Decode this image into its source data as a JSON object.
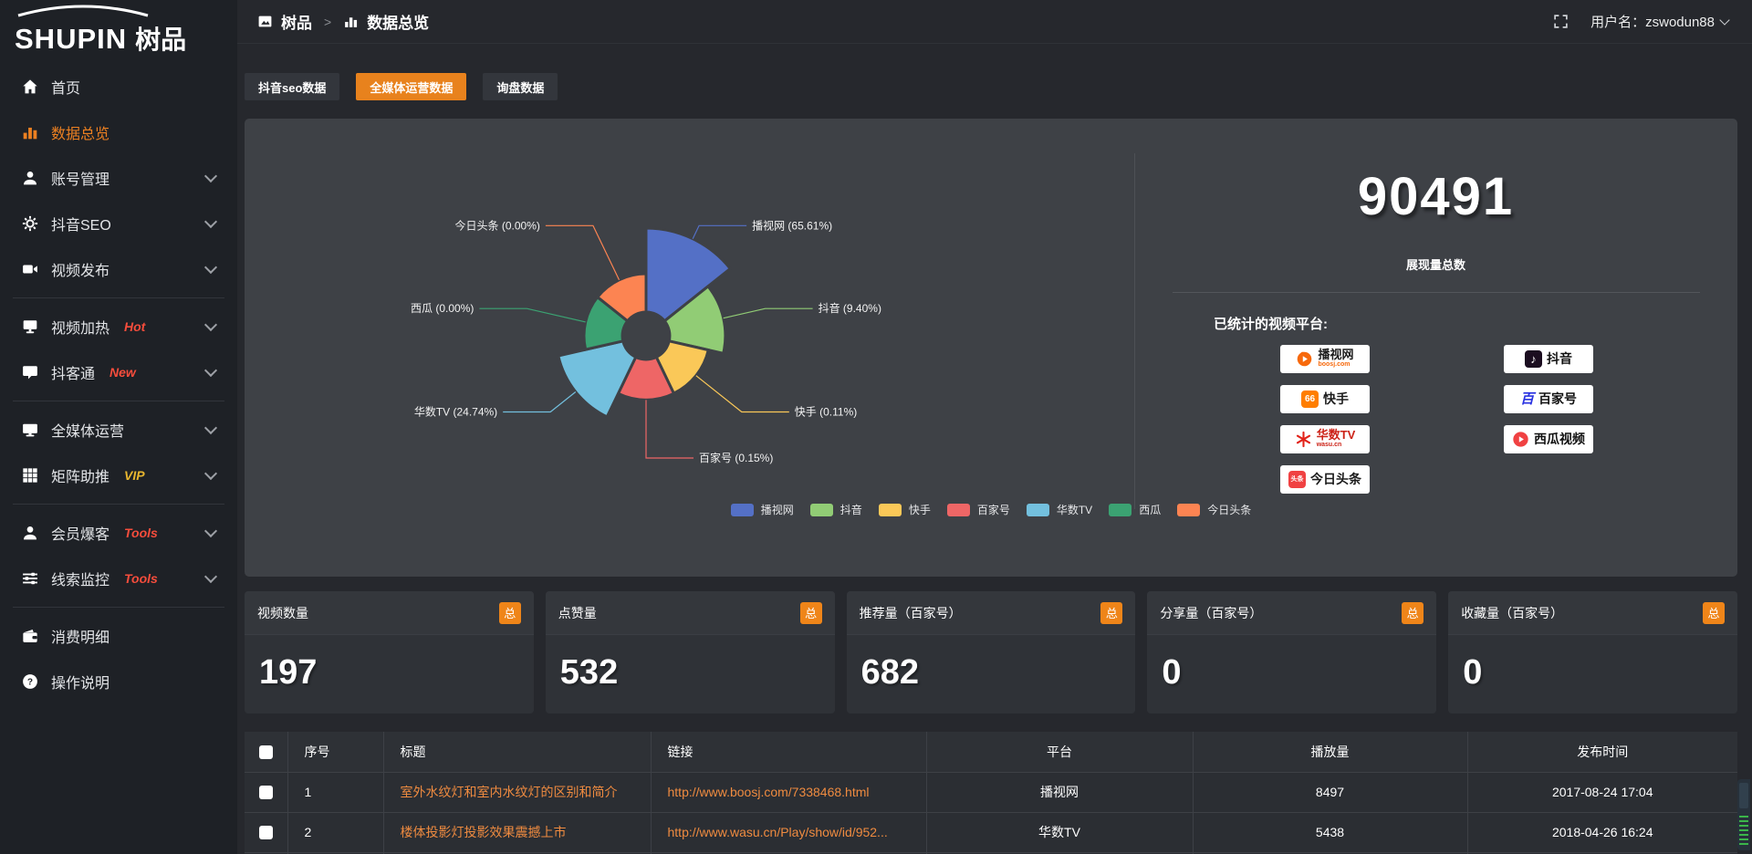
{
  "brand": {
    "latin": "SHUPIN",
    "cn": "树品"
  },
  "topbar": {
    "breadcrumb_root": "树品",
    "breadcrumb_sep": ">",
    "breadcrumb_current": "数据总览",
    "username": "用户名：zswodun88"
  },
  "sidebar": {
    "items": [
      {
        "label": "首页",
        "icon": "home-icon",
        "active": false,
        "chevron": false,
        "tag": "",
        "tag_color": "",
        "divider_after": false
      },
      {
        "label": "数据总览",
        "icon": "bar-chart-icon",
        "active": true,
        "chevron": false,
        "tag": "",
        "tag_color": "",
        "divider_after": false
      },
      {
        "label": "账号管理",
        "icon": "user-icon",
        "active": false,
        "chevron": true,
        "tag": "",
        "tag_color": "",
        "divider_after": false
      },
      {
        "label": "抖音SEO",
        "icon": "gear-icon",
        "active": false,
        "chevron": true,
        "tag": "",
        "tag_color": "",
        "divider_after": false
      },
      {
        "label": "视频发布",
        "icon": "video-icon",
        "active": false,
        "chevron": true,
        "tag": "",
        "tag_color": "",
        "divider_after": true
      },
      {
        "label": "视频加热",
        "icon": "heat-monitor-icon",
        "active": false,
        "chevron": true,
        "tag": "Hot",
        "tag_color": "#f74d3c",
        "divider_after": false
      },
      {
        "label": "抖客通",
        "icon": "chat-icon",
        "active": false,
        "chevron": true,
        "tag": "New",
        "tag_color": "#f74d3c",
        "divider_after": true
      },
      {
        "label": "全媒体运营",
        "icon": "screen-icon",
        "active": false,
        "chevron": true,
        "tag": "",
        "tag_color": "",
        "divider_after": false
      },
      {
        "label": "矩阵助推",
        "icon": "grid-icon",
        "active": false,
        "chevron": true,
        "tag": "VIP",
        "tag_color": "#e8b62f",
        "divider_after": true
      },
      {
        "label": "会员爆客",
        "icon": "member-icon",
        "active": false,
        "chevron": true,
        "tag": "Tools",
        "tag_color": "#f74d3c",
        "divider_after": false
      },
      {
        "label": "线索监控",
        "icon": "sliders-icon",
        "active": false,
        "chevron": true,
        "tag": "Tools",
        "tag_color": "#f74d3c",
        "divider_after": true
      },
      {
        "label": "消费明细",
        "icon": "wallet-icon",
        "active": false,
        "chevron": false,
        "tag": "",
        "tag_color": "",
        "divider_after": false
      },
      {
        "label": "操作说明",
        "icon": "question-icon",
        "active": false,
        "chevron": false,
        "tag": "",
        "tag_color": "",
        "divider_after": false
      }
    ]
  },
  "tabs": [
    {
      "label": "抖音seo数据",
      "active": false
    },
    {
      "label": "全媒体运营数据",
      "active": true
    },
    {
      "label": "询盘数据",
      "active": false
    }
  ],
  "chart_data": {
    "type": "pie",
    "variant": "nightingale-rose-donut",
    "categories": [
      "播视网",
      "抖音",
      "快手",
      "百家号",
      "华数TV",
      "西瓜",
      "今日头条"
    ],
    "values_percent": [
      65.61,
      9.4,
      0.11,
      0.15,
      24.74,
      0.0,
      0.0
    ],
    "labels": [
      "播视网 (65.61%)",
      "抖音 (9.40%)",
      "快手 (0.11%)",
      "百家号 (0.15%)",
      "华数TV (24.74%)",
      "西瓜 (0.00%)",
      "今日头条 (0.00%)"
    ],
    "colors": [
      "#5470c6",
      "#91cc75",
      "#fac858",
      "#ee6666",
      "#73c0de",
      "#3ba272",
      "#fc8452"
    ],
    "legend_position": "bottom-center",
    "start_angle_deg": -90,
    "clockwise": true,
    "equal_angles": true
  },
  "summary": {
    "total_value": "90491",
    "total_label": "展现量总数",
    "platforms_title": "已统计的视频平台:",
    "platform_badges_left": [
      {
        "name": "播视网",
        "sub": "boosj.com",
        "logo": "boosj-logo",
        "name_color": "#1b1b1b",
        "sub_color": "#f7690c"
      },
      {
        "name": "快手",
        "sub": "",
        "logo": "kuaishou-logo",
        "name_color": "#1b1b1b",
        "sub_color": ""
      },
      {
        "name": "华数TV",
        "sub": "wasu.cn",
        "logo": "wasu-logo",
        "name_color": "#cc2318",
        "sub_color": "#cc2318"
      },
      {
        "name": "今日头条",
        "sub": "",
        "logo": "toutiao-logo",
        "name_color": "#1b1b1b",
        "sub_color": ""
      }
    ],
    "platform_badges_right": [
      {
        "name": "抖音",
        "sub": "",
        "logo": "douyin-logo",
        "name_color": "#111111",
        "sub_color": ""
      },
      {
        "name": "百家号",
        "sub": "",
        "logo": "baijiahao-logo",
        "name_color": "#111111",
        "sub_color": ""
      },
      {
        "name": "西瓜视频",
        "sub": "",
        "logo": "xigua-logo",
        "name_color": "#111111",
        "sub_color": ""
      }
    ]
  },
  "stat_cards": [
    {
      "title": "视频数量",
      "badge": "总",
      "value": "197"
    },
    {
      "title": "点赞量",
      "badge": "总",
      "value": "532"
    },
    {
      "title": "推荐量（百家号）",
      "badge": "总",
      "value": "682"
    },
    {
      "title": "分享量（百家号）",
      "badge": "总",
      "value": "0"
    },
    {
      "title": "收藏量（百家号）",
      "badge": "总",
      "value": "0"
    }
  ],
  "table": {
    "headers": [
      "序号",
      "标题",
      "链接",
      "平台",
      "播放量",
      "发布时间"
    ],
    "rows": [
      {
        "no": "1",
        "title": "室外水纹灯和室内水纹灯的区别和简介",
        "link": "http://www.boosj.com/7338468.html",
        "platform": "播视网",
        "plays": "8497",
        "time": "2017-08-24 17:04"
      },
      {
        "no": "2",
        "title": "楼体投影灯投影效果震撼上市",
        "link": "http://www.wasu.cn/Play/show/id/952...",
        "platform": "华数TV",
        "plays": "5438",
        "time": "2018-04-26 16:24"
      }
    ]
  },
  "colors": {
    "accent_orange": "#ec8021",
    "tab_active": "#e8821d",
    "badge_orange": "#ef8519",
    "tag_red": "#f74d3c",
    "tag_gold": "#e8b62f",
    "link_orange": "#ef8b40",
    "panel_bg": "#3e4146",
    "page_bg": "#26282d",
    "sidebar_bg": "#1e2126"
  }
}
